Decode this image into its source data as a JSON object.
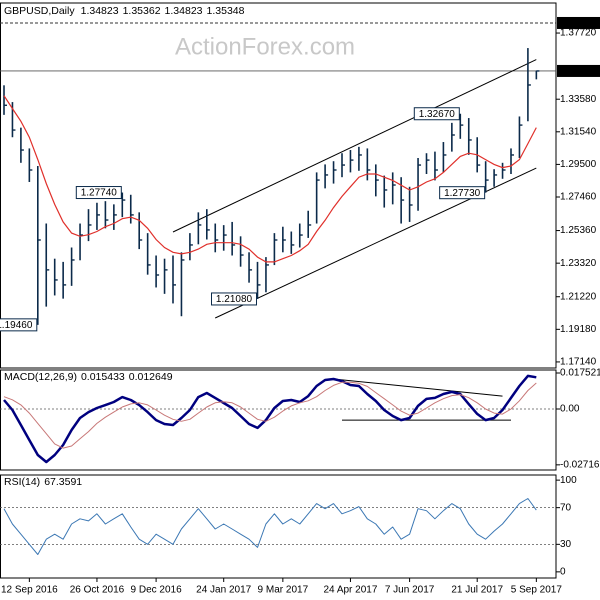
{
  "chart_data": [
    {
      "type": "ohlc",
      "title": "GBPUSD,Daily",
      "watermark": "ActionForex.com",
      "last_open": 1.34823,
      "color": "#0b2a4a",
      "categories": [
        null,
        null,
        null,
        "12 Sep 2016",
        null,
        null,
        null,
        null,
        null,
        null,
        null,
        "26 Oct 2016",
        null,
        null,
        null,
        null,
        null,
        null,
        "9 Dec 2016",
        null,
        null,
        null,
        null,
        null,
        null,
        null,
        "24 Jan 2017",
        null,
        null,
        null,
        null,
        null,
        null,
        "9 Mar 2017",
        null,
        null,
        null,
        null,
        null,
        null,
        null,
        "24 Apr 2017",
        null,
        null,
        null,
        null,
        null,
        null,
        "7 Jun 2017",
        null,
        null,
        null,
        null,
        null,
        null,
        null,
        "21 Jul 2017",
        null,
        null,
        null,
        null,
        null,
        null,
        "5 Sep 2017"
      ],
      "high": [
        1.3445,
        1.334,
        1.318,
        1.305,
        1.294,
        1.258,
        1.236,
        1.234,
        1.243,
        1.258,
        1.267,
        1.271,
        1.272,
        1.27,
        1.2774,
        1.276,
        1.265,
        1.252,
        1.238,
        1.236,
        1.238,
        1.24,
        1.252,
        1.265,
        1.267,
        1.258,
        1.257,
        1.259,
        1.25,
        1.24,
        1.234,
        1.237,
        1.252,
        1.256,
        1.253,
        1.258,
        1.266,
        1.29,
        1.295,
        1.297,
        1.302,
        1.304,
        1.306,
        1.305,
        1.295,
        1.288,
        1.29,
        1.287,
        1.281,
        1.299,
        1.302,
        1.303,
        1.309,
        1.321,
        1.3267,
        1.324,
        1.312,
        1.297,
        1.292,
        1.296,
        1.305,
        1.325,
        1.3678,
        1.35362
      ],
      "low": [
        1.326,
        1.312,
        1.296,
        1.284,
        1.1946,
        1.206,
        1.213,
        1.211,
        1.219,
        1.235,
        1.247,
        1.254,
        1.255,
        1.254,
        1.262,
        1.258,
        1.242,
        1.226,
        1.218,
        1.214,
        1.208,
        1.2,
        1.235,
        1.245,
        1.248,
        1.24,
        1.241,
        1.238,
        1.231,
        1.221,
        1.2108,
        1.215,
        1.232,
        1.24,
        1.239,
        1.243,
        1.249,
        1.258,
        1.28,
        1.283,
        1.287,
        1.29,
        1.291,
        1.285,
        1.275,
        1.268,
        1.27,
        1.258,
        1.259,
        1.266,
        1.289,
        1.285,
        1.29,
        1.303,
        1.311,
        1.301,
        1.29,
        1.2773,
        1.281,
        1.286,
        1.289,
        1.299,
        1.322,
        1.34823
      ],
      "close": [
        1.332,
        1.3165,
        1.304,
        1.2915,
        1.2477,
        1.229,
        1.2227,
        1.2196,
        1.2352,
        1.2508,
        1.2571,
        1.2634,
        1.2602,
        1.2634,
        1.2727,
        1.2634,
        1.2477,
        1.2321,
        1.2258,
        1.229,
        1.2196,
        1.2352,
        1.2446,
        1.2571,
        1.254,
        1.2477,
        1.2508,
        1.2446,
        1.2383,
        1.229,
        1.2196,
        1.2321,
        1.2477,
        1.2477,
        1.2446,
        1.2508,
        1.2571,
        1.2852,
        1.2884,
        1.2915,
        1.2946,
        1.2977,
        1.3009,
        1.2915,
        1.2852,
        1.279,
        1.2821,
        1.2727,
        1.2696,
        1.2946,
        1.2977,
        1.2915,
        1.3009,
        1.3134,
        1.3196,
        1.3103,
        1.2946,
        1.2852,
        1.2884,
        1.2915,
        1.3009,
        1.3196,
        1.3447,
        1.35348
      ],
      "series": [
        {
          "color": "#e0302b",
          "values": [
            1.338,
            1.33,
            1.322,
            1.312,
            1.298,
            1.283,
            1.27,
            1.259,
            1.252,
            1.25,
            1.251,
            1.253,
            1.256,
            1.258,
            1.261,
            1.262,
            1.26,
            1.255,
            1.248,
            1.243,
            1.24,
            1.239,
            1.24,
            1.242,
            1.245,
            1.246,
            1.246,
            1.246,
            1.245,
            1.242,
            1.237,
            1.234,
            1.234,
            1.236,
            1.238,
            1.241,
            1.245,
            1.253,
            1.26,
            1.268,
            1.275,
            1.281,
            1.287,
            1.289,
            1.289,
            1.287,
            1.285,
            1.282,
            1.279,
            1.281,
            1.284,
            1.286,
            1.29,
            1.295,
            1.3,
            1.302,
            1.301,
            1.298,
            1.295,
            1.293,
            1.294,
            1.298,
            1.308,
            1.318
          ]
        }
      ],
      "trendlines": [
        {
          "x": [
            20,
            63
          ],
          "values": [
            1.2527,
            1.3606
          ]
        },
        {
          "x": [
            25,
            63
          ],
          "values": [
            1.1989,
            1.2927
          ]
        }
      ],
      "levels": [
        {
          "value": 1.3835,
          "label": "1.38350"
        }
      ],
      "annotations": [
        {
          "index": 14,
          "value": 1.2774,
          "label": "1.27740"
        },
        {
          "index": 4,
          "value": 1.1946,
          "label": "1.19460"
        },
        {
          "index": 30,
          "value": 1.2108,
          "label": "1.21080"
        },
        {
          "index": 54,
          "value": 1.3267,
          "label": "1.32670"
        },
        {
          "index": 57,
          "value": 1.2773,
          "label": "1.27730"
        }
      ],
      "ylim": [
        1.1676,
        1.396
      ],
      "yticks": [
        {
          "value": 1.3772,
          "label": "1.37720"
        },
        {
          "value": 1.3358,
          "label": "1.33580"
        },
        {
          "value": 1.3154,
          "label": "1.31540"
        },
        {
          "value": 1.295,
          "label": "1.29500"
        },
        {
          "value": 1.2746,
          "label": "1.27460"
        },
        {
          "value": 1.2536,
          "label": "1.25360"
        },
        {
          "value": 1.2332,
          "label": "1.23320"
        },
        {
          "value": 1.2122,
          "label": "1.21220"
        },
        {
          "value": 1.1918,
          "label": "1.19180"
        },
        {
          "value": 1.1714,
          "label": "1.17140"
        }
      ]
    },
    {
      "type": "line",
      "title": "MACD(12,26,9)",
      "series": [
        {
          "color": "#00007f",
          "width": 2.5,
          "values": [
            0.0044,
            -0.0005,
            -0.0078,
            -0.0151,
            -0.0224,
            -0.0258,
            -0.0224,
            -0.0175,
            -0.0102,
            -0.0044,
            -0.0015,
            0.0005,
            0.0019,
            0.0034,
            0.0058,
            0.0044,
            0.0019,
            -0.0015,
            -0.0054,
            -0.0073,
            -0.0078,
            -0.0044,
            -0.0005,
            0.0058,
            0.0078,
            0.0054,
            0.0029,
            0.0005,
            -0.0034,
            -0.0073,
            -0.0092,
            -0.0054,
            0.0005,
            0.0039,
            0.0044,
            0.0034,
            0.0063,
            0.0112,
            0.0141,
            0.0146,
            0.0136,
            0.0117,
            0.0112,
            0.0073,
            0.0039,
            -0.0005,
            -0.0034,
            -0.0054,
            -0.0044,
            0.0015,
            0.0049,
            0.0054,
            0.0073,
            0.0083,
            0.0073,
            0.0024,
            -0.0024,
            -0.0054,
            -0.0044,
            -0.0005,
            0.0054,
            0.0112,
            0.0161,
            0.015433
          ]
        },
        {
          "color": "#c87878",
          "width": 1,
          "values": [
            0.006,
            0.0045,
            0.002,
            -0.002,
            -0.007,
            -0.012,
            -0.017,
            -0.019,
            -0.018,
            -0.0145,
            -0.011,
            -0.007,
            -0.004,
            -0.0015,
            0.001,
            0.0025,
            0.003,
            0.002,
            -0.0005,
            -0.003,
            -0.005,
            -0.006,
            -0.005,
            -0.002,
            0.001,
            0.003,
            0.0035,
            0.003,
            0.001,
            -0.002,
            -0.005,
            -0.006,
            -0.004,
            -0.001,
            0.0015,
            0.003,
            0.004,
            0.006,
            0.009,
            0.0115,
            0.013,
            0.013,
            0.0125,
            0.011,
            0.008,
            0.005,
            0.002,
            -0.001,
            -0.003,
            -0.002,
            0.0005,
            0.003,
            0.005,
            0.0065,
            0.007,
            0.0055,
            0.003,
            0,
            -0.002,
            -0.0025,
            0,
            0.004,
            0.009,
            0.012649
          ]
        }
      ],
      "trendlines": [
        {
          "x": [
            39,
            59
          ],
          "values": [
            0.0146,
            0.0063
          ]
        },
        {
          "x": [
            40,
            60
          ],
          "values": [
            -0.0054,
            -0.0054
          ]
        }
      ],
      "reference_lines": [
        0
      ],
      "ylim": [
        -0.02968,
        0.01898
      ],
      "yticks": [
        0.017521,
        {
          "value": 0,
          "label": "0.00"
        },
        -0.027169
      ]
    },
    {
      "type": "line",
      "title": "RSI(14)",
      "series": [
        {
          "color": "#3c78b4",
          "width": 1,
          "values": [
            68.9,
            52.2,
            41.1,
            30,
            18.9,
            35.6,
            41.1,
            35.6,
            52.2,
            57.8,
            55.6,
            63.3,
            52.2,
            57.8,
            63.3,
            48.9,
            35.6,
            30,
            41.1,
            35.6,
            30,
            46.7,
            57.8,
            68.9,
            57.8,
            46.7,
            52.2,
            46.7,
            41.1,
            35.6,
            26.7,
            52.2,
            63.3,
            52.2,
            57.8,
            52.2,
            63.3,
            74.4,
            68.9,
            74.4,
            63.3,
            66.7,
            71.1,
            57.8,
            52.2,
            41.1,
            48.9,
            35.6,
            41.1,
            68.9,
            66.7,
            57.8,
            66.7,
            74.4,
            68.9,
            52.2,
            41.1,
            35.6,
            44.4,
            52.2,
            63.3,
            74.4,
            80,
            67.3591
          ]
        }
      ],
      "reference_lines": [
        70,
        30
      ],
      "ylim": [
        -6.7,
        105.6
      ],
      "yticks": [
        100,
        70,
        30,
        0
      ]
    }
  ]
}
